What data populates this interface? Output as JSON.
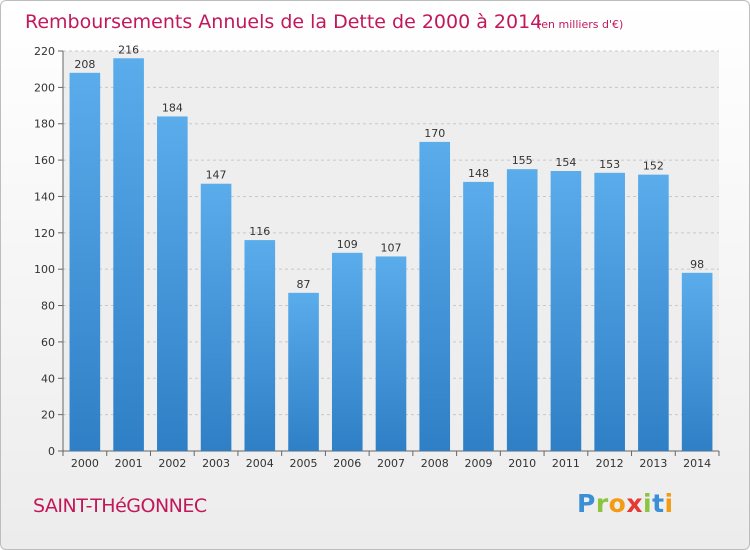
{
  "chart_data": {
    "type": "bar",
    "title": "Remboursements Annuels de la Dette de 2000 à 2014",
    "subtitle": "(en milliers d'€)",
    "categories": [
      "2000",
      "2001",
      "2002",
      "2003",
      "2004",
      "2005",
      "2006",
      "2007",
      "2008",
      "2009",
      "2010",
      "2011",
      "2012",
      "2013",
      "2014"
    ],
    "values": [
      208,
      216,
      184,
      147,
      116,
      87,
      109,
      107,
      170,
      148,
      155,
      154,
      153,
      152,
      98
    ],
    "ylim": [
      0,
      220
    ],
    "yticks": [
      0,
      20,
      40,
      60,
      80,
      100,
      120,
      140,
      160,
      180,
      200,
      220
    ],
    "grid": true,
    "bar_color": "#4fa0e3"
  },
  "commune": "SAINT-THéGONNEC",
  "logo": {
    "text": "Proxiti",
    "letters": [
      {
        "ch": "P",
        "color": "#3b8fd6"
      },
      {
        "ch": "r",
        "color": "#8bc53f"
      },
      {
        "ch": "o",
        "color": "#f39c12"
      },
      {
        "ch": "x",
        "color": "#e53935"
      },
      {
        "ch": "i",
        "color": "#8bc53f"
      },
      {
        "ch": "t",
        "color": "#3b8fd6"
      },
      {
        "ch": "i",
        "color": "#f39c12"
      }
    ]
  }
}
